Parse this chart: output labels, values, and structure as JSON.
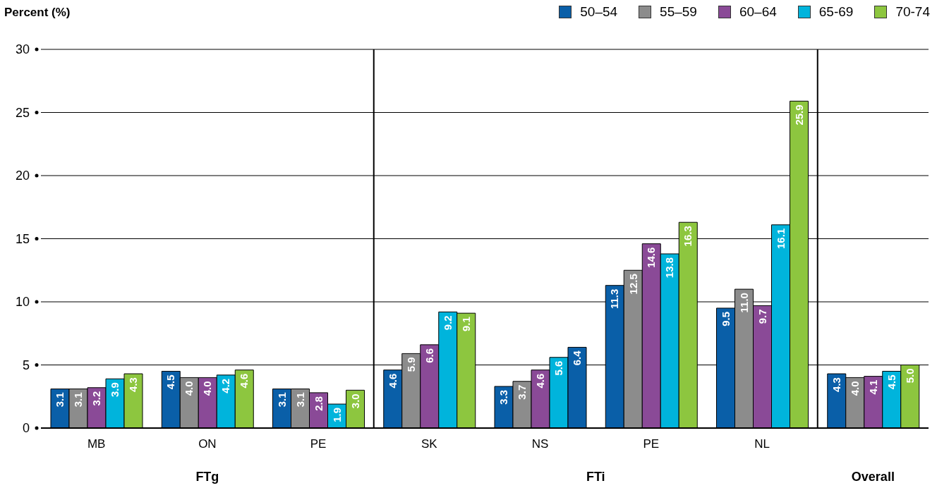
{
  "chart_data": {
    "type": "bar",
    "ylabel": "Percent (%)",
    "categories": [
      "MB",
      "ON",
      "PE",
      "SK",
      "NS",
      "PE",
      "NL",
      null
    ],
    "series": [
      {
        "name": "50–54",
        "color": "#0a5fa8",
        "values": [
          3.1,
          4.5,
          3.1,
          4.6,
          3.3,
          11.3,
          9.5,
          4.3
        ],
        "value_labels": [
          "3.1",
          "4.5",
          "3.1",
          "4.6",
          "3.3",
          "11.3",
          "9.5",
          "4.3"
        ]
      },
      {
        "name": "55–59",
        "color": "#8c8c8c",
        "values": [
          3.1,
          4.0,
          3.1,
          5.9,
          3.7,
          12.5,
          11.0,
          4.0
        ],
        "value_labels": [
          "3.1",
          "4.0",
          "3.1",
          "5.9",
          "3.7",
          "12.5",
          "11.0",
          "4.0"
        ]
      },
      {
        "name": "60–64",
        "color": "#8a4a97",
        "values": [
          3.2,
          4.0,
          2.8,
          6.6,
          4.6,
          14.6,
          9.7,
          4.1
        ],
        "value_labels": [
          "3.2",
          "4.0",
          "2.8",
          "6.6",
          "4.6",
          "14.6",
          "9.7",
          "4.1"
        ]
      },
      {
        "name": "65-69",
        "color": "#00b4dc",
        "values": [
          3.9,
          4.2,
          1.9,
          9.2,
          5.6,
          13.8,
          16.1,
          4.5
        ],
        "value_labels": [
          "3.9",
          "4.2",
          "1.9",
          "9.2",
          "5.6",
          "13.8",
          "16.1",
          "4.5"
        ]
      },
      {
        "name": "70-74",
        "color": "#8dc63f",
        "colors": [
          "#8dc63f",
          "#8dc63f",
          "#8dc63f",
          "#8dc63f",
          "#0a5fa8",
          "#8dc63f",
          "#8dc63f",
          "#8dc63f"
        ],
        "values": [
          4.3,
          4.6,
          3.0,
          9.1,
          6.4,
          16.3,
          25.9,
          5.0
        ],
        "value_labels": [
          "4.3",
          "4.6",
          "3.0",
          "9.1",
          "6.4",
          "16.3",
          "25.9",
          "5.0"
        ]
      }
    ],
    "ylim": [
      0,
      30
    ],
    "yticks": [
      0,
      5,
      10,
      15,
      20,
      25,
      30
    ],
    "grid": "y",
    "legend": "top right",
    "annotations": [
      "FTg",
      "FTi",
      "Overall"
    ]
  }
}
